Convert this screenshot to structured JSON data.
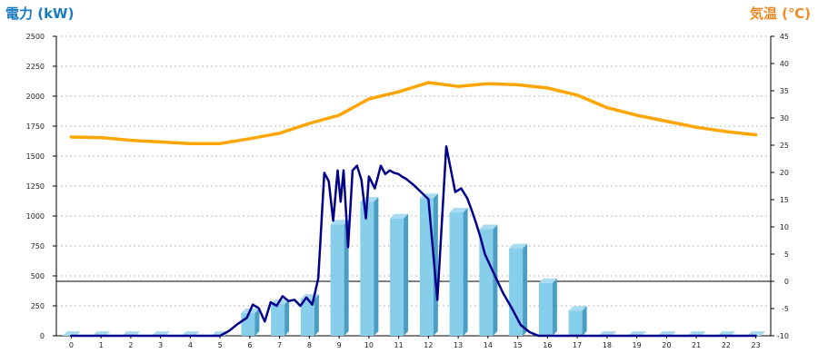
{
  "chart_data": {
    "type": "bar",
    "left_axis_title": "電力 (kW)",
    "right_axis_title": "気温 (℃)",
    "categories": [
      "0",
      "1",
      "2",
      "3",
      "4",
      "5",
      "6",
      "7",
      "8",
      "9",
      "10",
      "11",
      "12",
      "13",
      "14",
      "15",
      "16",
      "17",
      "18",
      "19",
      "20",
      "21",
      "22",
      "23"
    ],
    "left_ylim": [
      0,
      2500
    ],
    "left_ticks": [
      "0",
      "250",
      "500",
      "750",
      "1000",
      "1250",
      "1500",
      "1750",
      "2000",
      "2250",
      "2500"
    ],
    "right_ylim": [
      -10,
      45
    ],
    "right_ticks": [
      "-10",
      "-5",
      "0",
      "5",
      "10",
      "15",
      "20",
      "25",
      "30",
      "35",
      "40",
      "45"
    ],
    "grid": true,
    "colors": {
      "bars": "#87ceeb",
      "bar_side": "#4a9ec4",
      "power_line": "#00008b",
      "temp_line": "#ffa500",
      "zero_line": "#000000",
      "grid": "#bbbbbb"
    },
    "series": [
      {
        "axis": "left",
        "kind": "bar",
        "values": [
          0,
          0,
          0,
          0,
          0,
          0,
          190,
          265,
          310,
          930,
          1120,
          980,
          1150,
          1030,
          890,
          730,
          440,
          210,
          0,
          0,
          0,
          0,
          0,
          0
        ]
      },
      {
        "axis": "left",
        "kind": "line",
        "x": [
          0,
          1,
          2,
          3,
          4,
          5,
          5.3,
          5.6,
          5.9,
          6.1,
          6.3,
          6.5,
          6.7,
          6.9,
          7.1,
          7.3,
          7.5,
          7.7,
          7.9,
          8.1,
          8.3,
          8.5,
          8.65,
          8.8,
          8.95,
          9.05,
          9.15,
          9.3,
          9.45,
          9.6,
          9.75,
          9.9,
          10,
          10.2,
          10.4,
          10.55,
          10.7,
          10.85,
          11,
          11.1,
          11.25,
          11.5,
          11.75,
          12,
          12.3,
          12.6,
          12.9,
          13.1,
          13.3,
          13.45,
          13.6,
          13.75,
          13.9,
          14.2,
          14.5,
          14.8,
          15.1,
          15.4,
          15.7,
          16,
          16.3,
          16.6,
          16.9,
          17.2,
          17.5,
          18,
          19,
          20,
          21,
          22,
          23
        ],
        "values": [
          0,
          0,
          0,
          0,
          0,
          0,
          40,
          100,
          150,
          260,
          230,
          120,
          280,
          250,
          330,
          290,
          300,
          250,
          320,
          260,
          480,
          1360,
          1290,
          960,
          1380,
          1120,
          1380,
          740,
          1380,
          1420,
          1300,
          980,
          1330,
          1230,
          1420,
          1350,
          1380,
          1360,
          1350,
          1330,
          1310,
          1260,
          1200,
          1140,
          300,
          1580,
          1200,
          1230,
          1150,
          1050,
          940,
          820,
          680,
          520,
          360,
          230,
          90,
          30,
          0,
          0,
          0,
          0,
          0,
          0,
          0,
          0,
          0,
          0,
          0,
          0,
          0
        ]
      },
      {
        "axis": "right",
        "kind": "line",
        "x": [
          0,
          1,
          2,
          3,
          4,
          5,
          6,
          7,
          8,
          9,
          10,
          11,
          12,
          13,
          14,
          15,
          16,
          17,
          18,
          19,
          20,
          21,
          22,
          23
        ],
        "values": [
          26.5,
          26.4,
          25.9,
          25.6,
          25.3,
          25.3,
          26.2,
          27.2,
          29.0,
          30.5,
          33.5,
          34.8,
          36.5,
          35.8,
          36.3,
          36.1,
          35.5,
          34.2,
          31.9,
          30.5,
          29.4,
          28.3,
          27.5,
          26.9
        ]
      }
    ]
  }
}
